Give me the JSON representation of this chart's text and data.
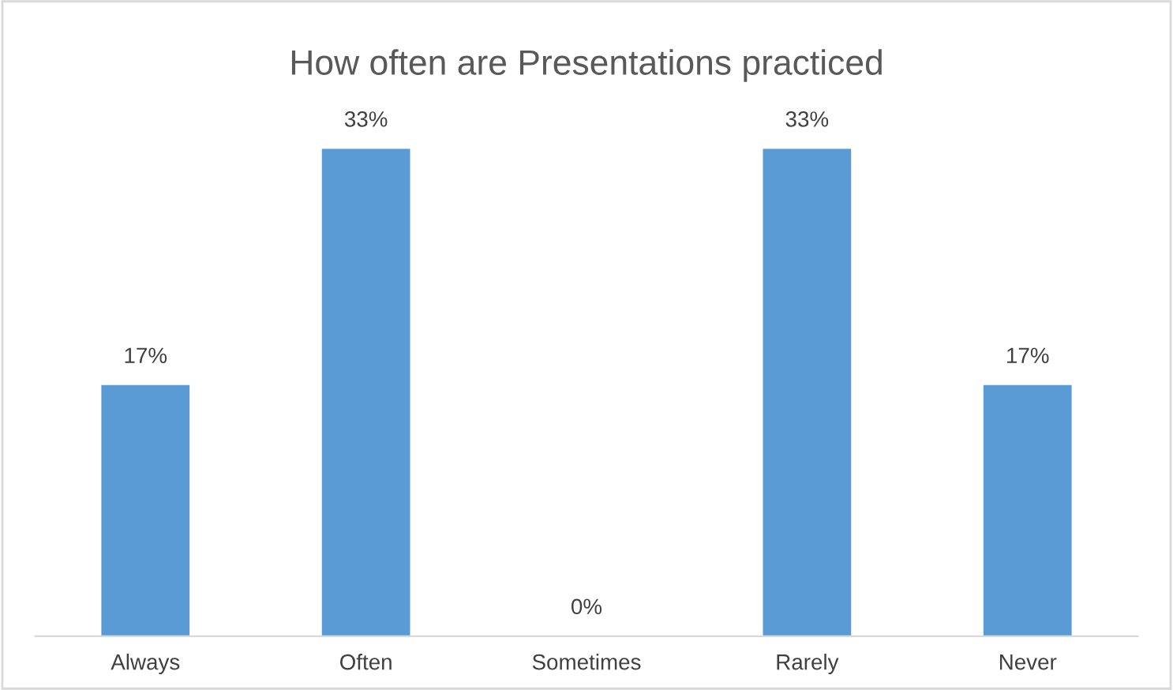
{
  "chart_data": {
    "type": "bar",
    "title": "How often are Presentations practiced",
    "categories": [
      "Always",
      "Often",
      "Sometimes",
      "Rarely",
      "Never"
    ],
    "values": [
      17,
      33,
      0,
      33,
      17
    ],
    "value_labels": [
      "17%",
      "33%",
      "0%",
      "33%",
      "17%"
    ],
    "color": "#5b9bd5",
    "grid": false,
    "legend": false
  }
}
